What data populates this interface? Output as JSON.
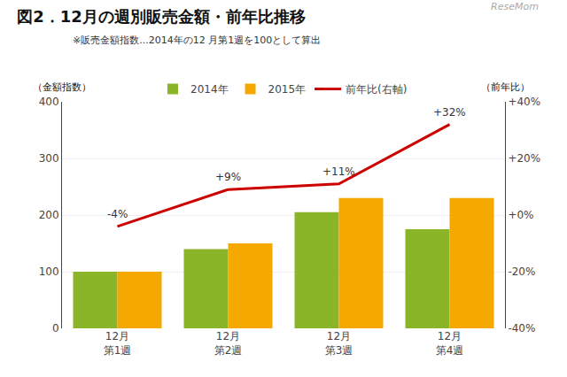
{
  "chart_data": {
    "type": "bar",
    "title": "図2．12月の週別販売金額・前年比推移",
    "subtitle": "※販売金額指数...2014年の12 月第1週を100として算出",
    "watermark": "ReseMom",
    "ylabel": "（金額指数）",
    "y2label": "（前年比）",
    "categories": [
      "12月\n第1週",
      "12月\n第2週",
      "12月\n第3週",
      "12月\n第4週"
    ],
    "series": [
      {
        "name": "2014年",
        "color": "#8ab528",
        "values": [
          100,
          140,
          205,
          175
        ]
      },
      {
        "name": "2015年",
        "color": "#f5a800",
        "values": [
          100,
          150,
          230,
          230
        ]
      },
      {
        "name": "前年比(右軸)",
        "type": "line",
        "axis": "y2",
        "color": "#cc0000",
        "values": [
          -4,
          9,
          11,
          32
        ],
        "value_labels": [
          "-4%",
          "+9%",
          "+11%",
          "+32%"
        ],
        "data_labels": true
      }
    ],
    "ylim": [
      0,
      400
    ],
    "yticks": [
      0,
      100,
      200,
      300,
      400
    ],
    "y2lim": [
      -40,
      40
    ],
    "y2ticks": [
      {
        "value": -40,
        "label": "-40%"
      },
      {
        "value": -20,
        "label": "-20%"
      },
      {
        "value": 0,
        "label": "+0%"
      },
      {
        "value": 20,
        "label": "+20%"
      },
      {
        "value": 40,
        "label": "+40%"
      }
    ],
    "grid": true,
    "legend": "top"
  }
}
